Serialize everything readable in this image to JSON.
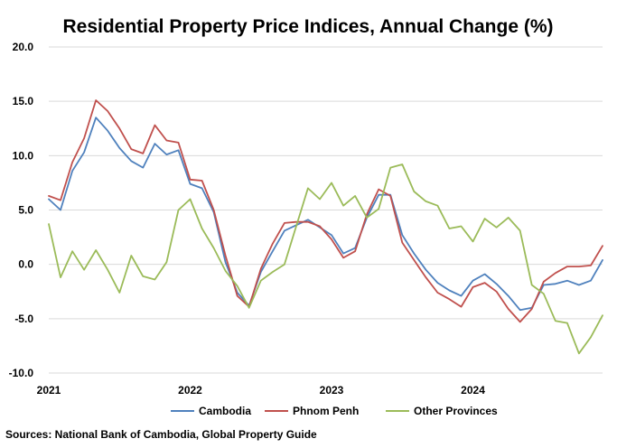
{
  "chart_data": {
    "type": "line",
    "title": "Residential Property Price Indices, Annual Change (%)",
    "source": "Sources: National Bank of Cambodia, Global Property Guide",
    "ylim": [
      -10,
      20
    ],
    "yticks": [
      "20.0",
      "15.0",
      "10.0",
      "5.0",
      "0.0",
      "-5.0",
      "-10.0"
    ],
    "ytick_values": [
      20,
      15,
      10,
      5,
      0,
      -5,
      -10
    ],
    "xtick_labels": [
      "2021",
      "2022",
      "2023",
      "2024"
    ],
    "xtick_index": [
      0,
      12,
      24,
      36
    ],
    "grid": true,
    "legend_position": "bottom",
    "series": [
      {
        "name": "Cambodia",
        "color": "#4f81bd",
        "values": [
          6.0,
          5.0,
          8.6,
          10.3,
          13.5,
          12.3,
          10.7,
          9.5,
          8.9,
          11.1,
          10.1,
          10.5,
          7.4,
          7.0,
          4.8,
          0.2,
          -2.6,
          -3.8,
          -0.7,
          1.2,
          3.1,
          3.6,
          4.1,
          3.4,
          2.7,
          1.0,
          1.5,
          4.3,
          6.4,
          6.4,
          2.7,
          1.0,
          -0.5,
          -1.7,
          -2.4,
          -2.9,
          -1.5,
          -0.9,
          -1.8,
          -2.9,
          -4.2,
          -4.0,
          -1.9,
          -1.8,
          -1.5,
          -1.9,
          -1.5,
          0.4
        ]
      },
      {
        "name": "Phnom Penh",
        "color": "#c0504d",
        "values": [
          6.3,
          5.9,
          9.4,
          11.6,
          15.1,
          14.1,
          12.5,
          10.6,
          10.2,
          12.8,
          11.4,
          11.2,
          7.8,
          7.7,
          5.0,
          0.8,
          -2.9,
          -3.9,
          -0.4,
          1.9,
          3.8,
          3.9,
          3.9,
          3.5,
          2.3,
          0.6,
          1.2,
          4.6,
          6.9,
          6.3,
          2.0,
          0.4,
          -1.2,
          -2.6,
          -3.2,
          -3.9,
          -2.1,
          -1.7,
          -2.5,
          -4.1,
          -5.3,
          -4.1,
          -1.6,
          -0.8,
          -0.2,
          -0.2,
          -0.1,
          1.7
        ]
      },
      {
        "name": "Other Provinces",
        "color": "#9bbb59",
        "values": [
          3.7,
          -1.2,
          1.2,
          -0.5,
          1.3,
          -0.5,
          -2.6,
          0.8,
          -1.1,
          -1.4,
          0.2,
          5.0,
          6.0,
          3.3,
          1.5,
          -0.6,
          -2.0,
          -4.0,
          -1.5,
          -0.7,
          0.0,
          3.5,
          7.0,
          6.0,
          7.5,
          5.4,
          6.3,
          4.3,
          5.1,
          8.9,
          9.2,
          6.7,
          5.8,
          5.4,
          3.3,
          3.5,
          2.1,
          4.2,
          3.4,
          4.3,
          3.1,
          -1.9,
          -2.7,
          -5.2,
          -5.4,
          -8.2,
          -6.7,
          -4.7
        ]
      }
    ]
  }
}
